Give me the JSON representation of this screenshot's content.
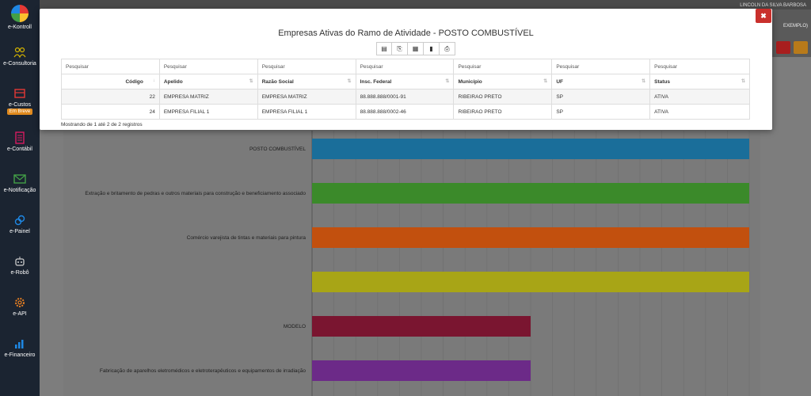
{
  "sidebar": {
    "items": [
      {
        "label": "e-Kontroll",
        "icon": "logo-icon"
      },
      {
        "label": "e-Consultoria",
        "icon": "people-icon"
      },
      {
        "label": "e-Custos",
        "icon": "cost-icon",
        "badge": "Em Breve"
      },
      {
        "label": "e-Contábil",
        "icon": "ledger-icon"
      },
      {
        "label": "e-Notificação",
        "icon": "mail-icon"
      },
      {
        "label": "e-Painel",
        "icon": "link-icon"
      },
      {
        "label": "e-Robô",
        "icon": "robot-icon"
      },
      {
        "label": "e-API",
        "icon": "gear-icon"
      },
      {
        "label": "e-Financeiro",
        "icon": "chart-icon"
      }
    ]
  },
  "topbar": {
    "user": "LINCOLN DA SILVA BARBOSA",
    "company": "EXEMPLO)"
  },
  "modal": {
    "title": "Empresas Ativas do Ramo de Atividade - POSTO COMBUSTÍVEL",
    "close_label": "✖",
    "toolbar": [
      "csv-icon",
      "copy-icon",
      "excel-icon",
      "pdf-icon",
      "print-icon"
    ],
    "search_placeholder": "Pesquisar",
    "columns": [
      "Código",
      "Apelido",
      "Razão Social",
      "Insc. Federal",
      "Município",
      "UF",
      "Status"
    ],
    "rows": [
      [
        "22",
        "EMPRESA MATRIZ",
        "EMPRESA MATRIZ",
        "88.888.888/0001-91",
        "RIBEIRAO PRETO",
        "SP",
        "ATIVA"
      ],
      [
        "24",
        "EMPRESA FILIAL 1",
        "EMPRESA FILIAL 1",
        "88.888.888/0002-46",
        "RIBEIRAO PRETO",
        "SP",
        "ATIVA"
      ]
    ],
    "info": "Mostrando de 1 até 2 de 2 registros"
  },
  "chart_data": {
    "type": "bar",
    "orientation": "horizontal",
    "categories": [
      "POSTO COMBUSTÍVEL",
      "Extração e britamento de pedras e outros materiais para construção e beneficiamento associado",
      "Comércio varejista de tintas e materiais para pintura",
      "",
      "MODELO",
      "Fabricação de aparelhos eletromédicos e eletroterapêuticos e equipamentos de irradiação"
    ],
    "values": [
      2,
      2,
      2,
      2,
      1,
      1
    ],
    "colors": [
      "#1a6e9a",
      "#3b8a2a",
      "#c2500e",
      "#a8a516",
      "#7a1530",
      "#6c2a88"
    ],
    "xlim": [
      0,
      2
    ],
    "grid": true
  }
}
